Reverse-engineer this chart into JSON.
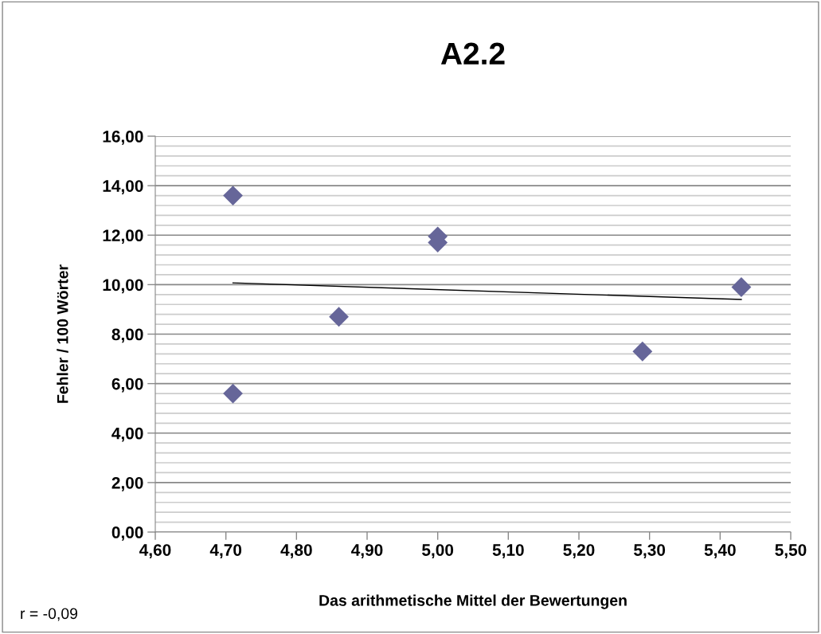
{
  "chart_data": {
    "type": "scatter",
    "title": "A2.2",
    "xlabel": "Das arithmetische Mittel der Bewertungen",
    "ylabel": "Fehler / 100 Wörter",
    "x": [
      4.71,
      4.71,
      4.86,
      5.0,
      5.0,
      5.29,
      5.43
    ],
    "series": [
      {
        "color": "#666699",
        "marker": "diamond",
        "values": [
          13.6,
          5.6,
          8.7,
          11.95,
          11.7,
          7.3,
          9.9
        ]
      },
      {
        "type": "line",
        "color": "#000000",
        "marker": "none",
        "line_style": "solid",
        "x": [
          4.71,
          5.43
        ],
        "values": [
          10.07,
          9.4
        ]
      }
    ],
    "xlim": [
      4.6,
      5.5
    ],
    "xticks": [
      {
        "value": 4.6,
        "label": "4,60"
      },
      {
        "value": 4.7,
        "label": "4,70"
      },
      {
        "value": 4.8,
        "label": "4,80"
      },
      {
        "value": 4.9,
        "label": "4,90"
      },
      {
        "value": 5.0,
        "label": "5,00"
      },
      {
        "value": 5.1,
        "label": "5,10"
      },
      {
        "value": 5.2,
        "label": "5,20"
      },
      {
        "value": 5.3,
        "label": "5,30"
      },
      {
        "value": 5.4,
        "label": "5,40"
      },
      {
        "value": 5.5,
        "label": "5,50"
      }
    ],
    "ylim": [
      0,
      16
    ],
    "yticks": [
      {
        "value": 0,
        "label": "0,00"
      },
      {
        "value": 0.4,
        "label": null
      },
      {
        "value": 0.8,
        "label": null
      },
      {
        "value": 1.2,
        "label": null
      },
      {
        "value": 1.6,
        "label": null
      },
      {
        "value": 2,
        "label": "2,00"
      },
      {
        "value": 2.4,
        "label": null
      },
      {
        "value": 2.8,
        "label": null
      },
      {
        "value": 3.2,
        "label": null
      },
      {
        "value": 3.6,
        "label": null
      },
      {
        "value": 4,
        "label": "4,00"
      },
      {
        "value": 4.4,
        "label": null
      },
      {
        "value": 4.8,
        "label": null
      },
      {
        "value": 5.2,
        "label": null
      },
      {
        "value": 5.6,
        "label": null
      },
      {
        "value": 6,
        "label": "6,00"
      },
      {
        "value": 6.4,
        "label": null
      },
      {
        "value": 6.8,
        "label": null
      },
      {
        "value": 7.2,
        "label": null
      },
      {
        "value": 7.6,
        "label": null
      },
      {
        "value": 8,
        "label": "8,00"
      },
      {
        "value": 8.4,
        "label": null
      },
      {
        "value": 8.8,
        "label": null
      },
      {
        "value": 9.2,
        "label": null
      },
      {
        "value": 9.6,
        "label": null
      },
      {
        "value": 10,
        "label": "10,00"
      },
      {
        "value": 10.4,
        "label": null
      },
      {
        "value": 10.8,
        "label": null
      },
      {
        "value": 11.2,
        "label": null
      },
      {
        "value": 11.6,
        "label": null
      },
      {
        "value": 12,
        "label": "12,00"
      },
      {
        "value": 12.4,
        "label": null
      },
      {
        "value": 12.8,
        "label": null
      },
      {
        "value": 13.2,
        "label": null
      },
      {
        "value": 13.6,
        "label": null
      },
      {
        "value": 14,
        "label": "14,00"
      },
      {
        "value": 14.4,
        "label": null
      },
      {
        "value": 14.8,
        "label": null
      },
      {
        "value": 15.2,
        "label": null
      },
      {
        "value": 15.6,
        "label": null
      },
      {
        "value": 16,
        "label": "16,00"
      }
    ],
    "grid": "y",
    "legend": false,
    "annotations": [
      "r = -0,09"
    ]
  }
}
